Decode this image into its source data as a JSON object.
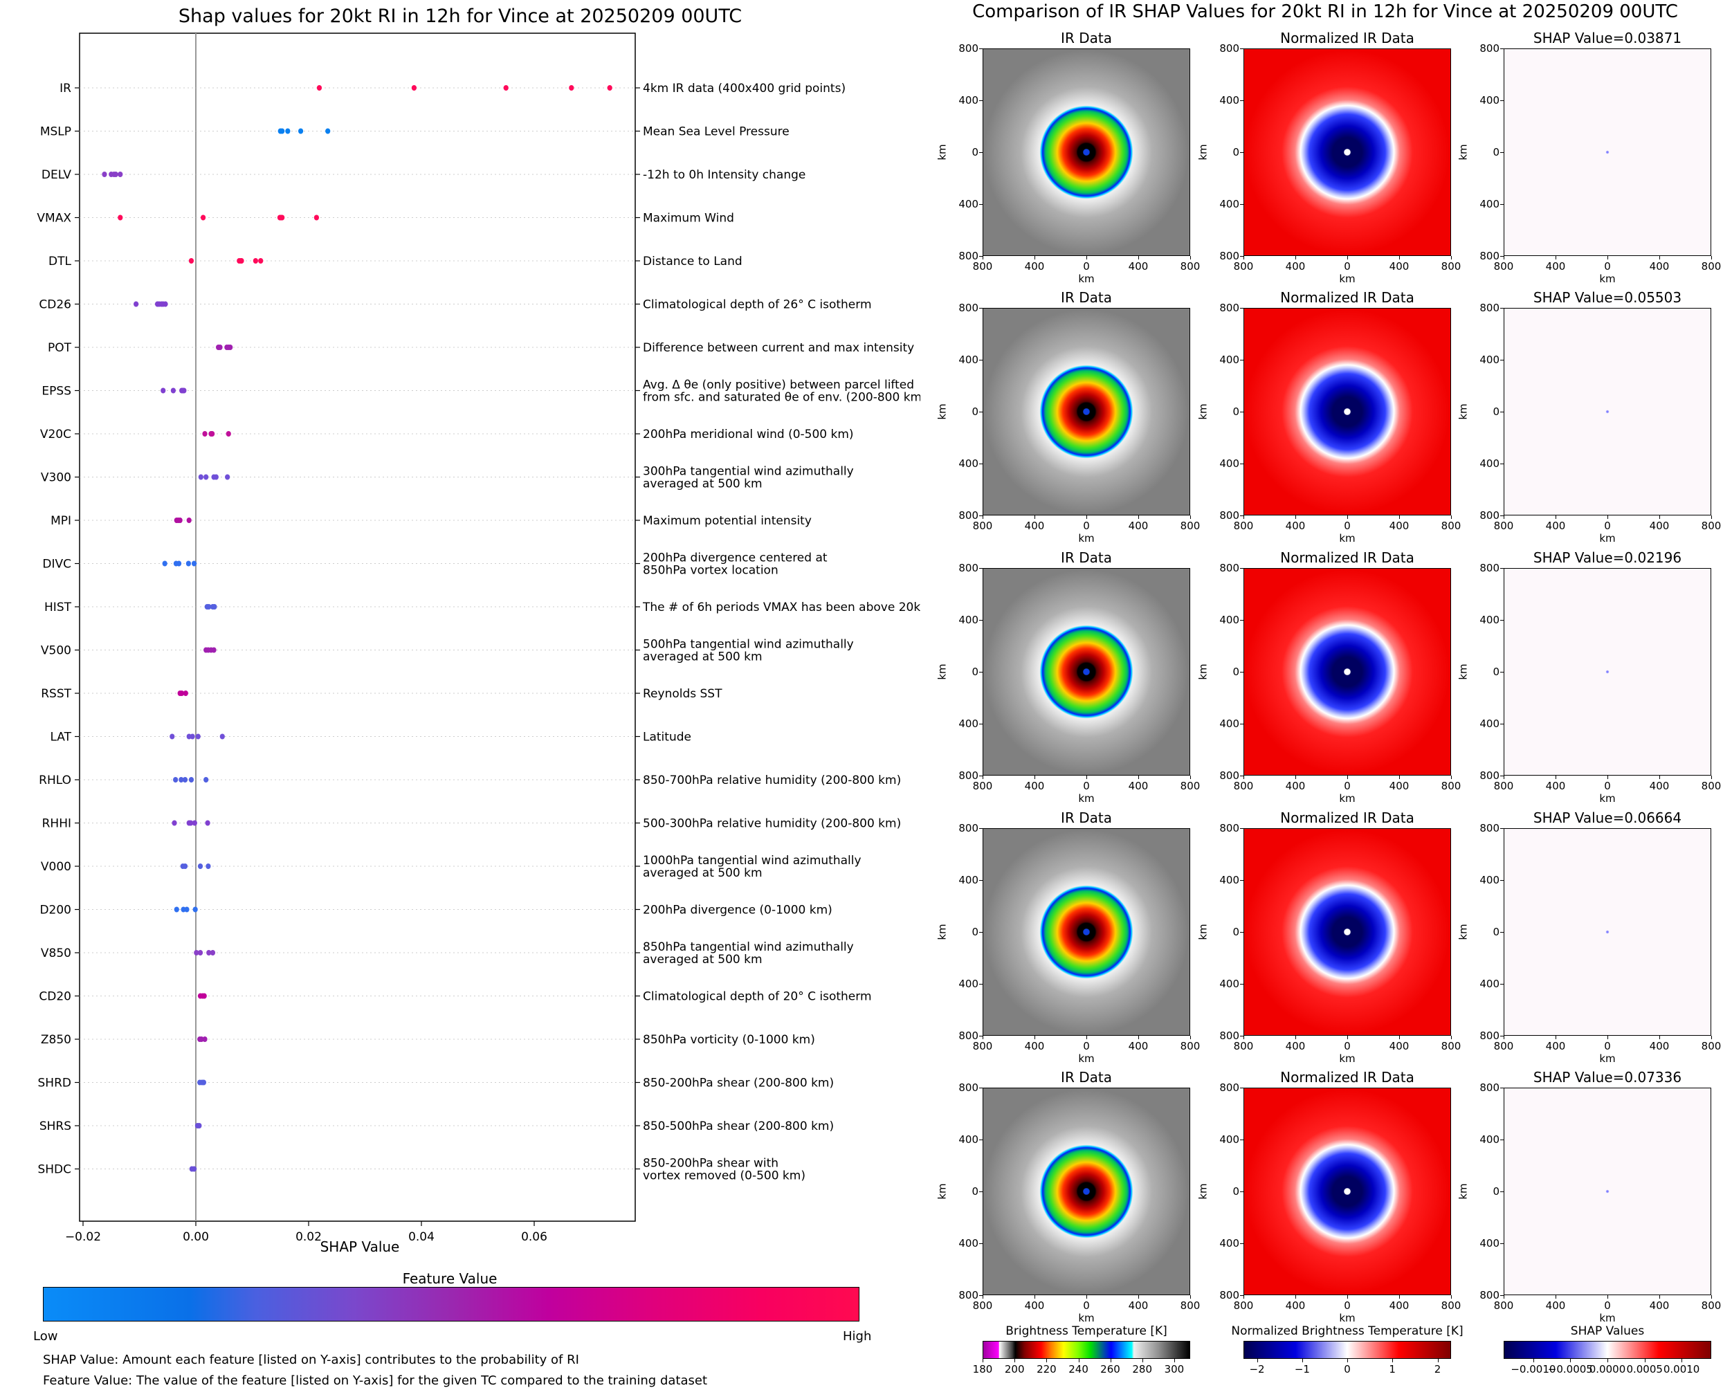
{
  "left": {
    "title": "Shap values for 20kt RI in 12h for Vince at 20250209 00UTC",
    "xlabel": "SHAP Value",
    "xticks": [
      "−0.02",
      "0.00",
      "0.02",
      "0.04",
      "0.06"
    ],
    "colorbar_title": "Feature Value",
    "colorbar_low": "Low",
    "colorbar_high": "High",
    "footnote_1": "SHAP Value: Amount each feature [listed on Y-axis] contributes to the probability of RI",
    "footnote_2": "Feature Value: The value of the feature [listed on Y-axis] for the given TC compared to the training dataset"
  },
  "right": {
    "title": "Comparison of IR SHAP Values for 20kt RI in 12h for Vince at 20250209 00UTC",
    "col_titles": [
      "IR Data",
      "Normalized IR Data"
    ],
    "shap_titles": [
      "SHAP Value=0.03871",
      "SHAP Value=0.05503",
      "SHAP Value=0.02196",
      "SHAP Value=0.06664",
      "SHAP Value=0.07336"
    ],
    "axis_ticks": [
      "800",
      "400",
      "0",
      "400",
      "800"
    ],
    "axis_label": "km",
    "colorbars": [
      {
        "title": "Brightness Temperature [K]",
        "ticks": [
          "180",
          "200",
          "220",
          "240",
          "260",
          "280",
          "300"
        ]
      },
      {
        "title": "Normalized Brightness Temperature [K]",
        "ticks": [
          "−2",
          "−1",
          "0",
          "1",
          "2"
        ]
      },
      {
        "title": "SHAP Values",
        "ticks": [
          "−0.0010",
          "−0.0005",
          "0.0000",
          "0.0005",
          "0.0010"
        ]
      }
    ]
  },
  "chart_data": [
    {
      "type": "scatter",
      "title": "Shap values for 20kt RI in 12h for Vince at 20250209 00UTC",
      "xlabel": "SHAP Value",
      "ylabel": "",
      "xlim": [
        -0.0205,
        0.0775
      ],
      "xticks": [
        -0.02,
        0.0,
        0.02,
        0.04,
        0.06
      ],
      "grid": "horizontal dotted",
      "colorbar": {
        "label": "Feature Value",
        "low": "Low",
        "high": "High"
      },
      "features": [
        {
          "name": "IR",
          "desc": "4km IR data (400x400 grid points)",
          "color": "#ff0a5a",
          "values": [
            0.0219,
            0.0387,
            0.055,
            0.0666,
            0.0734
          ]
        },
        {
          "name": "MSLP",
          "desc": "Mean Sea Level Pressure",
          "color": "#0a80f0",
          "values": [
            0.015,
            0.0153,
            0.0163,
            0.0186,
            0.0234
          ]
        },
        {
          "name": "DELV",
          "desc": "-12h to 0h Intensity change",
          "color": "#8a40c8",
          "values": [
            -0.0162,
            -0.015,
            -0.0145,
            -0.0142,
            -0.0134
          ]
        },
        {
          "name": "VMAX",
          "desc": "Maximum Wind",
          "color": "#ff0a5a",
          "values": [
            -0.0134,
            0.0013,
            0.0149,
            0.0151,
            0.0153,
            0.0214
          ]
        },
        {
          "name": "DTL",
          "desc": "Distance to Land",
          "color": "#ff0a5a",
          "values": [
            -0.0008,
            0.0077,
            0.008,
            0.0081,
            0.0106,
            0.0115
          ]
        },
        {
          "name": "CD26",
          "desc": "Climatological depth of 26° C isotherm",
          "color": "#8040d0",
          "values": [
            -0.0106,
            -0.0068,
            -0.0065,
            -0.0061,
            -0.0058,
            -0.0054
          ]
        },
        {
          "name": "POT",
          "desc": "Difference between current and max intensity",
          "color": "#a020b0",
          "values": [
            0.004,
            0.0043,
            0.0055,
            0.0058,
            0.0061
          ]
        },
        {
          "name": "EPSS",
          "desc": "Avg. Δ θe (only positive) between parcel lifted\nfrom sfc. and saturated θe of env. (200-800 km)",
          "color": "#8040d0",
          "values": [
            -0.0058,
            -0.004,
            -0.0025,
            -0.0023,
            -0.0021
          ]
        },
        {
          "name": "V20C",
          "desc": "200hPa meridional wind (0-500 km)",
          "color": "#c0109a",
          "values": [
            0.0016,
            0.0027,
            0.0029,
            0.0058
          ]
        },
        {
          "name": "V300",
          "desc": "300hPa tangential wind azimuthally\naveraged at 500 km",
          "color": "#7050d8",
          "values": [
            0.0009,
            0.0018,
            0.0032,
            0.0036,
            0.0056
          ]
        },
        {
          "name": "MPI",
          "desc": "Maximum potential intensity",
          "color": "#b010a0",
          "values": [
            -0.0034,
            -0.0031,
            -0.0028,
            -0.0012
          ]
        },
        {
          "name": "DIVC",
          "desc": "200hPa divergence centered at\n850hPa vortex location",
          "color": "#3070f0",
          "values": [
            -0.0055,
            -0.0035,
            -0.003,
            -0.0013,
            -0.0003
          ]
        },
        {
          "name": "HIST",
          "desc": "The # of 6h periods VMAX has been above 20kt",
          "color": "#5560e0",
          "values": [
            0.002,
            0.0023,
            0.003,
            0.0033
          ]
        },
        {
          "name": "V500",
          "desc": "500hPa tangential wind azimuthally\naveraged at 500 km",
          "color": "#a020b0",
          "values": [
            0.0018,
            0.0022,
            0.0027,
            0.0032
          ]
        },
        {
          "name": "RSST",
          "desc": "Reynolds SST",
          "color": "#c0009a",
          "values": [
            -0.0028,
            -0.0025,
            -0.0018
          ]
        },
        {
          "name": "LAT",
          "desc": "Latitude",
          "color": "#7050d8",
          "values": [
            -0.0042,
            -0.0012,
            -0.0006,
            0.0004,
            0.0047
          ]
        },
        {
          "name": "RHLO",
          "desc": "850-700hPa relative humidity (200-800 km)",
          "color": "#5060e0",
          "values": [
            -0.0036,
            -0.0026,
            -0.0019,
            -0.0008,
            0.0018
          ]
        },
        {
          "name": "RHHI",
          "desc": "500-300hPa relative humidity (200-800 km)",
          "color": "#8040d0",
          "values": [
            -0.0038,
            -0.0012,
            -0.0009,
            -0.0002,
            0.0021
          ]
        },
        {
          "name": "V000",
          "desc": "1000hPa tangential wind azimuthally\naveraged at 500 km",
          "color": "#5560e0",
          "values": [
            -0.0023,
            -0.0019,
            0.0008,
            0.0022
          ]
        },
        {
          "name": "D200",
          "desc": "200hPa divergence (0-1000 km)",
          "color": "#3070f0",
          "values": [
            -0.0034,
            -0.0022,
            -0.0016,
            -0.0001
          ]
        },
        {
          "name": "V850",
          "desc": "850hPa tangential wind azimuthally\naveraged at 500 km",
          "color": "#8a40c8",
          "values": [
            0.0001,
            0.0008,
            0.0023,
            0.003
          ]
        },
        {
          "name": "CD20",
          "desc": "Climatological depth of 20° C isotherm",
          "color": "#c0009a",
          "values": [
            0.0008,
            0.0012,
            0.0015
          ]
        },
        {
          "name": "Z850",
          "desc": "850hPa vorticity (0-1000 km)",
          "color": "#a020b0",
          "values": [
            0.0007,
            0.001,
            0.0016
          ]
        },
        {
          "name": "SHRD",
          "desc": "850-200hPa shear (200-800 km)",
          "color": "#5560e0",
          "values": [
            0.0007,
            0.0011,
            0.0014
          ]
        },
        {
          "name": "SHRS",
          "desc": "850-500hPa shear (200-800 km)",
          "color": "#6a50d8",
          "values": [
            0.0003,
            0.0006
          ]
        },
        {
          "name": "SHDC",
          "desc": "850-200hPa shear with\nvortex removed (0-500 km)",
          "color": "#6a50d8",
          "values": [
            -0.0007,
            -0.0003
          ]
        }
      ]
    },
    {
      "type": "heatmap",
      "title": "Comparison of IR SHAP Values for 20kt RI in 12h for Vince at 20250209 00UTC",
      "rows": 5,
      "columns": [
        "IR Data",
        "Normalized IR Data",
        "SHAP Value"
      ],
      "shap_values": [
        0.03871,
        0.05503,
        0.02196,
        0.06664,
        0.07336
      ],
      "xlabel": "km",
      "ylabel": "km",
      "xlim": [
        -800,
        800
      ],
      "ylim": [
        -800,
        800
      ],
      "axis_tick_labels": [
        "800",
        "400",
        "0",
        "400",
        "800"
      ],
      "colorbars": [
        {
          "label": "Brightness Temperature [K]",
          "range": [
            180,
            310
          ],
          "ticks": [
            180,
            200,
            220,
            240,
            260,
            280,
            300
          ]
        },
        {
          "label": "Normalized Brightness Temperature [K]",
          "range": [
            -2.3,
            2.3
          ],
          "ticks": [
            -2,
            -1,
            0,
            1,
            2
          ]
        },
        {
          "label": "SHAP Values",
          "range": [
            -0.0014,
            0.0014
          ],
          "ticks": [
            -0.001,
            -0.0005,
            0.0,
            0.0005,
            0.001
          ]
        }
      ]
    }
  ]
}
